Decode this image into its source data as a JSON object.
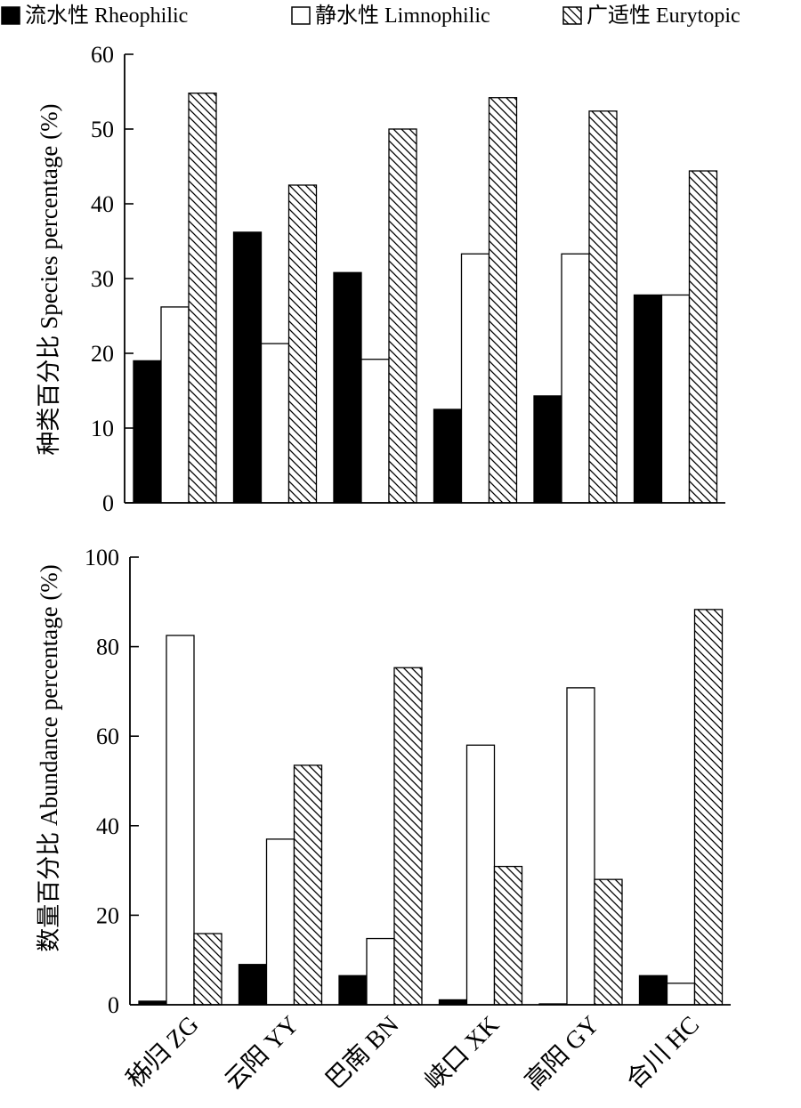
{
  "legend": {
    "items": [
      {
        "label": "流水性 Rheophilic",
        "pattern": "solid"
      },
      {
        "label": "静水性 Limnophilic",
        "pattern": "empty"
      },
      {
        "label": "广适性 Eurytopic",
        "pattern": "hatch"
      }
    ],
    "placement": "top"
  },
  "colors": {
    "solid": "#000000",
    "empty": "#ffffff",
    "line": "#000000"
  },
  "chart_data": [
    {
      "type": "bar",
      "ylabel": "种类百分比 Species percentage (%)",
      "ylim": [
        0,
        60
      ],
      "yticks": [
        0,
        10,
        20,
        30,
        40,
        50,
        60
      ],
      "categories": [
        "秭归 ZG",
        "云阳 YY",
        "巴南 BN",
        "峡口 XK",
        "高阳 GY",
        "合川 HC"
      ],
      "show_xticklabels": false,
      "series": [
        {
          "name": "流水性 Rheophilic",
          "values": [
            19.0,
            36.2,
            30.8,
            12.5,
            14.3,
            27.8
          ]
        },
        {
          "name": "静水性 Limnophilic",
          "values": [
            26.2,
            21.3,
            19.2,
            33.3,
            33.3,
            27.8
          ]
        },
        {
          "name": "广适性 Eurytopic",
          "values": [
            54.8,
            42.5,
            50.0,
            54.2,
            52.4,
            44.4
          ]
        }
      ]
    },
    {
      "type": "bar",
      "ylabel": "数量百分比 Abundance percentage (%)",
      "ylim": [
        0,
        100
      ],
      "yticks": [
        0,
        20,
        40,
        60,
        80,
        100
      ],
      "categories": [
        "秭归 ZG",
        "云阳 YY",
        "巴南 BN",
        "峡口 XK",
        "高阳 GY",
        "合川 HC"
      ],
      "show_xticklabels": true,
      "series": [
        {
          "name": "流水性 Rheophilic",
          "values": [
            0.8,
            9.0,
            6.5,
            1.1,
            0.2,
            6.5
          ]
        },
        {
          "name": "静水性 Limnophilic",
          "values": [
            82.5,
            37.0,
            14.8,
            58.0,
            70.8,
            4.8
          ]
        },
        {
          "name": "广适性 Eurytopic",
          "values": [
            15.9,
            53.5,
            75.3,
            30.9,
            28.0,
            88.3
          ]
        }
      ]
    }
  ]
}
